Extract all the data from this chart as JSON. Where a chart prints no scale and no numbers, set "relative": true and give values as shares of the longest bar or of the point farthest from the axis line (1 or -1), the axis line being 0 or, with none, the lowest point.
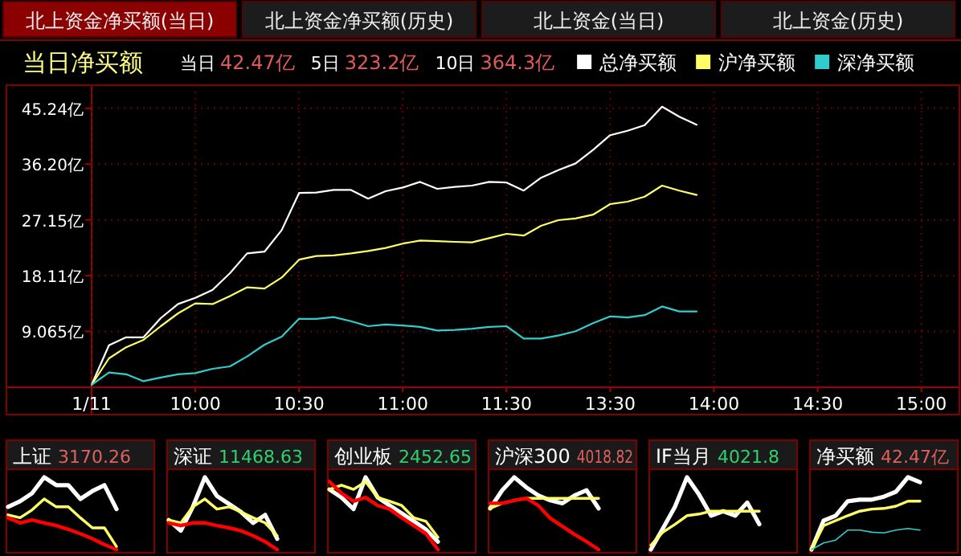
{
  "chart_data": [
    {
      "type": "line",
      "title": "当日净买额",
      "annotations": [
        "北上资金净买额(当日)",
        "北上资金净买额(历史)",
        "北上资金(当日)",
        "北上资金(历史)",
        "当日",
        "42.47亿",
        "5日",
        "323.2亿",
        "10日",
        "364.3亿"
      ],
      "ylim": [
        0,
        49
      ],
      "categories": [
        "1/11",
        null,
        null,
        null,
        null,
        null,
        "10:00",
        null,
        null,
        null,
        null,
        null,
        "10:30",
        null,
        null,
        null,
        null,
        null,
        "11:00",
        null,
        null,
        null,
        null,
        null,
        "11:30",
        null,
        null,
        null,
        null,
        null,
        "13:30",
        null,
        null,
        null,
        null,
        null,
        "14:00",
        null,
        null,
        null,
        null,
        null,
        "14:30",
        null,
        null,
        null,
        null,
        null,
        "15:00",
        null,
        null
      ],
      "yticks": [
        {
          "value": 9.065,
          "label": "9.065亿"
        },
        {
          "value": 18.11,
          "label": "18.11亿"
        },
        {
          "value": 27.15,
          "label": "27.15亿"
        },
        {
          "value": 36.2,
          "label": "36.20亿"
        },
        {
          "value": 45.24,
          "label": "45.24亿"
        }
      ],
      "grid": true,
      "legend": "top right",
      "series": [
        {
          "name": "总净买额",
          "color": "#ffffff",
          "values": [
            0.4,
            6.8,
            8.1,
            8.1,
            11.2,
            13.5,
            14.5,
            15.8,
            18.5,
            21.7,
            22,
            25.5,
            31.5,
            31.6,
            32,
            32,
            30.6,
            31.8,
            32.4,
            33.3,
            32.2,
            32.5,
            32.7,
            33.3,
            33.2,
            31.9,
            34,
            35.2,
            36.3,
            38.5,
            40.9,
            41.6,
            42.5,
            45.5,
            43.9,
            42.6,
            null,
            null,
            null,
            null,
            null,
            null,
            null,
            null,
            null,
            null,
            null,
            null,
            null,
            null,
            null
          ]
        },
        {
          "name": "沪净买额",
          "color": "#ffff66",
          "values": [
            0.4,
            4.7,
            6.5,
            7.7,
            9.9,
            12,
            13.6,
            13.5,
            14.8,
            16.2,
            16,
            17.8,
            20.7,
            21.3,
            21.4,
            21.7,
            22.1,
            22.6,
            23.3,
            23.8,
            23.7,
            23.6,
            23.5,
            24.2,
            24.9,
            24.6,
            26.2,
            27.1,
            27.4,
            28,
            29.7,
            30.1,
            30.9,
            32.7,
            31.9,
            31.2,
            null,
            null,
            null,
            null,
            null,
            null,
            null,
            null,
            null,
            null,
            null,
            null,
            null,
            null,
            null
          ]
        },
        {
          "name": "深净买额",
          "color": "#33cccc",
          "values": [
            0.4,
            2.4,
            2.1,
            1.0,
            1.6,
            2.1,
            2.3,
            3.0,
            3.4,
            5.0,
            6.9,
            8.2,
            11.1,
            11.1,
            11.4,
            10.7,
            9.9,
            10.2,
            10.0,
            9.8,
            9.2,
            9.3,
            9.5,
            9.8,
            9.9,
            7.9,
            7.9,
            8.4,
            9.1,
            10.4,
            11.5,
            11.3,
            11.7,
            13.1,
            12.3,
            12.3,
            null,
            null,
            null,
            null,
            null,
            null,
            null,
            null,
            null,
            null,
            null,
            null,
            null,
            null,
            null
          ]
        }
      ]
    },
    {
      "type": "line",
      "relative": true,
      "title": "上证",
      "subtitle": "3170.26",
      "categories": [
        null,
        null,
        null,
        null,
        null,
        null,
        null,
        null,
        null,
        null,
        null,
        null,
        null
      ],
      "series": [
        {
          "color": "#ffffff",
          "values": [
            0.59,
            0.67,
            0.78,
            1.0,
            0.89,
            0.89,
            0.7,
            0.81,
            0.89,
            0.56,
            null,
            null,
            null
          ]
        },
        {
          "color": "#ffff66",
          "values": [
            0.48,
            0.44,
            0.55,
            0.7,
            0.59,
            0.59,
            0.44,
            0.3,
            0.3,
            0.04,
            null,
            null,
            null
          ]
        },
        {
          "color": "#ff0000",
          "values": [
            0.44,
            0.37,
            0.41,
            0.37,
            0.33,
            0.28,
            0.22,
            0.15,
            0.07,
            0.0,
            null,
            null,
            null
          ]
        }
      ]
    },
    {
      "type": "line",
      "relative": true,
      "title": "深证",
      "subtitle": "11468.63",
      "categories": [
        null,
        null,
        null,
        null,
        null,
        null,
        null,
        null,
        null,
        null,
        null,
        null,
        null
      ],
      "series": [
        {
          "color": "#ffffff",
          "values": [
            0.41,
            0.26,
            0.59,
            1.0,
            0.74,
            0.63,
            0.52,
            0.37,
            0.48,
            0.15,
            null,
            null,
            null
          ]
        },
        {
          "color": "#ffff66",
          "values": [
            0.41,
            0.37,
            0.59,
            0.7,
            0.56,
            0.59,
            0.52,
            0.44,
            0.37,
            0.19,
            null,
            null,
            null
          ]
        },
        {
          "color": "#ff0000",
          "values": [
            0.37,
            0.33,
            0.37,
            0.37,
            0.33,
            0.3,
            0.26,
            0.19,
            0.11,
            0.0,
            null,
            null,
            null
          ]
        }
      ]
    },
    {
      "type": "line",
      "relative": true,
      "title": "创业板",
      "subtitle": "2452.65",
      "categories": [
        null,
        null,
        null,
        null,
        null,
        null,
        null,
        null,
        null,
        null,
        null,
        null,
        null
      ],
      "series": [
        {
          "color": "#ffffff",
          "values": [
            0.83,
            0.72,
            0.56,
            1.0,
            0.72,
            0.61,
            0.5,
            0.39,
            0.28,
            0.11,
            null,
            null,
            null
          ]
        },
        {
          "color": "#ffff66",
          "values": [
            0.83,
            0.89,
            0.83,
            0.94,
            0.72,
            0.67,
            0.61,
            0.44,
            0.39,
            0.17,
            null,
            null,
            null
          ]
        },
        {
          "color": "#ff0000",
          "values": [
            0.94,
            0.78,
            0.67,
            0.72,
            0.61,
            0.56,
            0.44,
            0.33,
            0.22,
            0.0,
            null,
            null,
            null
          ]
        }
      ]
    },
    {
      "type": "line",
      "relative": true,
      "title": "沪深300",
      "subtitle": "4018.82",
      "categories": [
        null,
        null,
        null,
        null,
        null,
        null,
        null,
        null,
        null,
        null,
        null,
        null,
        null
      ],
      "series": [
        {
          "color": "#ffffff",
          "values": [
            0.57,
            0.82,
            1.0,
            0.86,
            0.75,
            0.68,
            0.64,
            0.75,
            0.82,
            0.57,
            null,
            null,
            null
          ]
        },
        {
          "color": "#ffff66",
          "values": [
            0.57,
            0.64,
            0.68,
            0.71,
            0.71,
            0.71,
            0.71,
            0.71,
            0.71,
            0.71,
            null,
            null,
            null
          ]
        },
        {
          "color": "#ff0000",
          "values": [
            0.64,
            0.64,
            0.68,
            0.71,
            0.61,
            0.43,
            0.32,
            0.21,
            0.11,
            0.0,
            null,
            null,
            null
          ]
        }
      ]
    },
    {
      "type": "line",
      "relative": true,
      "title": "IF当月",
      "subtitle": "4021.8",
      "categories": [
        null,
        null,
        null,
        null,
        null,
        null,
        null,
        null,
        null,
        null,
        null,
        null,
        null
      ],
      "series": [
        {
          "color": "#ffffff",
          "values": [
            0.0,
            0.29,
            0.59,
            1.0,
            0.76,
            0.47,
            0.53,
            0.47,
            0.65,
            0.35,
            null,
            null,
            null
          ]
        },
        {
          "color": "#ffff66",
          "values": [
            0.06,
            0.24,
            0.35,
            0.47,
            0.49,
            0.53,
            0.53,
            0.53,
            0.53,
            0.53,
            null,
            null,
            null
          ]
        }
      ]
    },
    {
      "type": "line",
      "relative": true,
      "title": "净买额",
      "subtitle": "42.47亿",
      "categories": [
        null,
        null,
        null,
        null,
        null,
        null,
        null,
        null,
        null,
        null,
        null,
        null,
        null
      ],
      "series": [
        {
          "color": "#ffffff",
          "values": [
            0,
            0.4,
            0.47,
            0.67,
            0.69,
            0.69,
            0.73,
            0.8,
            1.0,
            0.93,
            null,
            null,
            null
          ]
        },
        {
          "color": "#ffff66",
          "values": [
            0,
            0.33,
            0.4,
            0.47,
            0.53,
            0.56,
            0.57,
            0.6,
            0.67,
            0.67,
            null,
            null,
            null
          ]
        },
        {
          "color": "#33cccc",
          "values": [
            0,
            0.09,
            0.13,
            0.27,
            0.27,
            0.24,
            0.23,
            0.27,
            0.29,
            0.27,
            null,
            null,
            null
          ]
        }
      ]
    }
  ]
}
